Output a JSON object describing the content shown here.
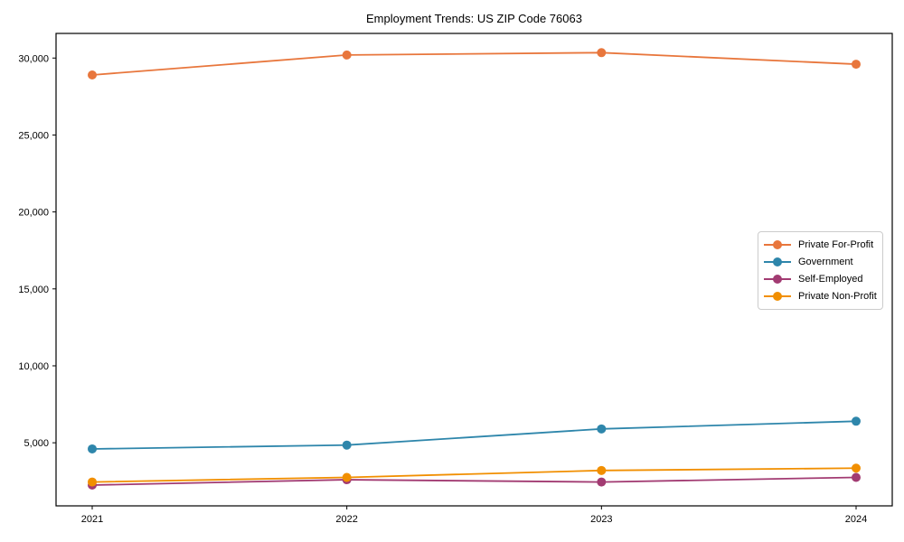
{
  "chart_data": {
    "type": "line",
    "title": "Employment Trends: US ZIP Code 76063",
    "categories": [
      "2021",
      "2022",
      "2023",
      "2024"
    ],
    "series": [
      {
        "name": "Private For-Profit",
        "color": "#E8763C",
        "values": [
          28900,
          30200,
          30350,
          29600
        ]
      },
      {
        "name": "Government",
        "color": "#2E86AB",
        "values": [
          4600,
          4850,
          5900,
          6400
        ]
      },
      {
        "name": "Self-Employed",
        "color": "#A23B72",
        "values": [
          2250,
          2600,
          2450,
          2750
        ]
      },
      {
        "name": "Private Non-Profit",
        "color": "#F18F01",
        "values": [
          2450,
          2750,
          3200,
          3350
        ]
      }
    ],
    "xlabel": "",
    "ylabel": "",
    "ylim": [
      900,
      31600
    ],
    "yticks": [
      {
        "value": 5000,
        "label": "5,000"
      },
      {
        "value": 10000,
        "label": "10,000"
      },
      {
        "value": 15000,
        "label": "15,000"
      },
      {
        "value": 20000,
        "label": "20,000"
      },
      {
        "value": 25000,
        "label": "25,000"
      },
      {
        "value": 30000,
        "label": "30,000"
      }
    ],
    "grid": false,
    "legend_position": "right-middle",
    "axis_color": "#000000",
    "background": "#FFFFFF",
    "marker": "circle",
    "marker_radius": 5,
    "line_width": 1.8
  }
}
